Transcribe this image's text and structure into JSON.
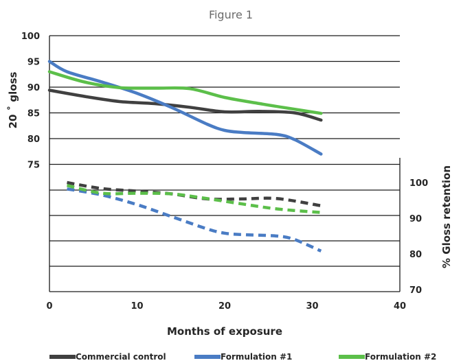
{
  "chart_data": {
    "type": "line",
    "title": "Figure 1",
    "xlabel": "Months of exposure",
    "ylabel_left": "20 ˚ gloss",
    "ylabel_right": "% Gloss retention",
    "xlim": [
      0,
      40
    ],
    "x_ticks": [
      "0",
      "10",
      "20",
      "30",
      "40"
    ],
    "y_left_ticks": [
      "100",
      "95",
      "90",
      "85",
      "80",
      "75"
    ],
    "y_right_ticks": [
      "100",
      "90",
      "80",
      "70"
    ],
    "grid": "horizontal",
    "legend_position": "bottom",
    "series": [
      {
        "name": "Commercial control",
        "axis": "left",
        "style": "solid",
        "color": "#404040",
        "x": [
          0,
          4,
          8,
          12,
          16,
          20,
          24,
          28,
          31
        ],
        "y": [
          89.4,
          88.2,
          87.2,
          86.8,
          86.1,
          85.2,
          85.3,
          85.0,
          83.6
        ]
      },
      {
        "name": "Formulation #1",
        "axis": "left",
        "style": "solid",
        "color": "#4a7cc4",
        "x": [
          0,
          2,
          6,
          10,
          14,
          18,
          20,
          22,
          26,
          28,
          31
        ],
        "y": [
          95.0,
          93.0,
          91.0,
          88.8,
          86.0,
          82.8,
          81.6,
          81.2,
          80.8,
          79.8,
          77.0
        ]
      },
      {
        "name": "Formulation #2",
        "axis": "left",
        "style": "solid",
        "color": "#5cbf4a",
        "x": [
          0,
          4,
          8,
          12,
          16,
          20,
          24,
          28,
          31
        ],
        "y": [
          93.0,
          91.0,
          89.9,
          89.8,
          89.7,
          88.0,
          86.8,
          85.7,
          84.9
        ]
      },
      {
        "name": "Commercial control",
        "axis": "right",
        "style": "dashed",
        "color": "#404040",
        "x": [
          2,
          6,
          10,
          14,
          18,
          22,
          26,
          31
        ],
        "y": [
          100.0,
          98.3,
          97.6,
          96.8,
          95.4,
          95.4,
          95.5,
          93.5
        ]
      },
      {
        "name": "Formulation #1",
        "axis": "right",
        "style": "dashed",
        "color": "#4a7cc4",
        "x": [
          2,
          6,
          10,
          14,
          18,
          20,
          22,
          26,
          28,
          31
        ],
        "y": [
          98.2,
          96.5,
          93.8,
          90.4,
          87.0,
          85.8,
          85.4,
          85.0,
          84.0,
          80.8
        ]
      },
      {
        "name": "Formulation #2",
        "axis": "right",
        "style": "dashed",
        "color": "#5cbf4a",
        "x": [
          2,
          6,
          10,
          14,
          18,
          22,
          26,
          31
        ],
        "y": [
          99.2,
          97.0,
          97.0,
          96.8,
          95.5,
          94.0,
          92.6,
          91.6
        ]
      }
    ],
    "legend": [
      {
        "label": "Commercial control",
        "color": "#404040"
      },
      {
        "label": "Formulation #1",
        "color": "#4a7cc4"
      },
      {
        "label": "Formulation #2",
        "color": "#5cbf4a"
      }
    ]
  }
}
